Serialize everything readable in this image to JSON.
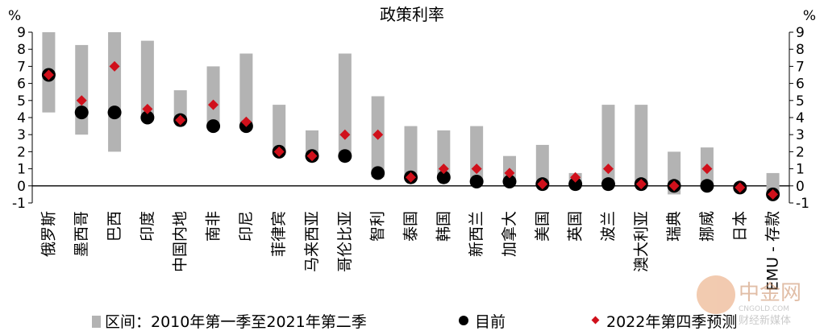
{
  "chart_data": {
    "type": "range-dot",
    "title": "政策利率",
    "ylabel_left": "%",
    "ylabel_right": "%",
    "ylim": [
      -1,
      9
    ],
    "yticks": [
      "-1",
      "0",
      "1",
      "2",
      "3",
      "4",
      "5",
      "6",
      "7",
      "8",
      "9"
    ],
    "categories": [
      "俄罗斯",
      "墨西哥",
      "巴西",
      "印度",
      "中国内地",
      "南非",
      "印尼",
      "菲律宾",
      "马来西亚",
      "哥伦比亚",
      "智利",
      "泰国",
      "韩国",
      "新西兰",
      "加拿大",
      "美国",
      "英国",
      "波兰",
      "澳大利亚",
      "瑞典",
      "挪威",
      "日本",
      "EMU - 存款"
    ],
    "series": [
      {
        "name": "区间：2010年第一季至2021年第二季",
        "kind": "range",
        "color": "#b3b3b3",
        "low": [
          4.3,
          3.0,
          2.0,
          4.0,
          3.8,
          3.5,
          3.5,
          2.0,
          1.8,
          1.8,
          0.5,
          0.5,
          0.5,
          0.25,
          0.25,
          0.1,
          0.1,
          0.1,
          0.1,
          -0.5,
          0.0,
          -0.1,
          -0.5
        ],
        "high": [
          9.0,
          8.25,
          9.0,
          8.5,
          5.6,
          7.0,
          7.75,
          4.75,
          3.25,
          7.75,
          5.25,
          3.5,
          3.25,
          3.5,
          1.75,
          2.4,
          0.75,
          4.75,
          4.75,
          2.0,
          2.25,
          0.0,
          0.75
        ]
      },
      {
        "name": "目前",
        "kind": "dot",
        "color": "#000000",
        "values": [
          6.5,
          4.3,
          4.3,
          4.0,
          3.85,
          3.5,
          3.5,
          2.0,
          1.75,
          1.75,
          0.75,
          0.5,
          0.5,
          0.25,
          0.25,
          0.1,
          0.1,
          0.1,
          0.1,
          0.0,
          0.0,
          -0.1,
          -0.5
        ]
      },
      {
        "name": "2022年第四季预测",
        "kind": "diamond",
        "color": "#d0101b",
        "values": [
          6.5,
          5.0,
          7.0,
          4.5,
          3.85,
          4.75,
          3.75,
          2.0,
          1.75,
          3.0,
          3.0,
          0.5,
          1.0,
          1.0,
          0.75,
          0.1,
          0.5,
          1.0,
          0.1,
          0.0,
          1.0,
          -0.1,
          -0.5
        ]
      }
    ]
  },
  "legend": {
    "range_label": "区间：2010年第一季至2021年第二季",
    "dot_label": "目前",
    "forecast_label": "2022年第四季预测"
  },
  "watermark": {
    "text": "中金网",
    "url": "CNGOLD.COM",
    "subtext": "财经新媒体"
  }
}
